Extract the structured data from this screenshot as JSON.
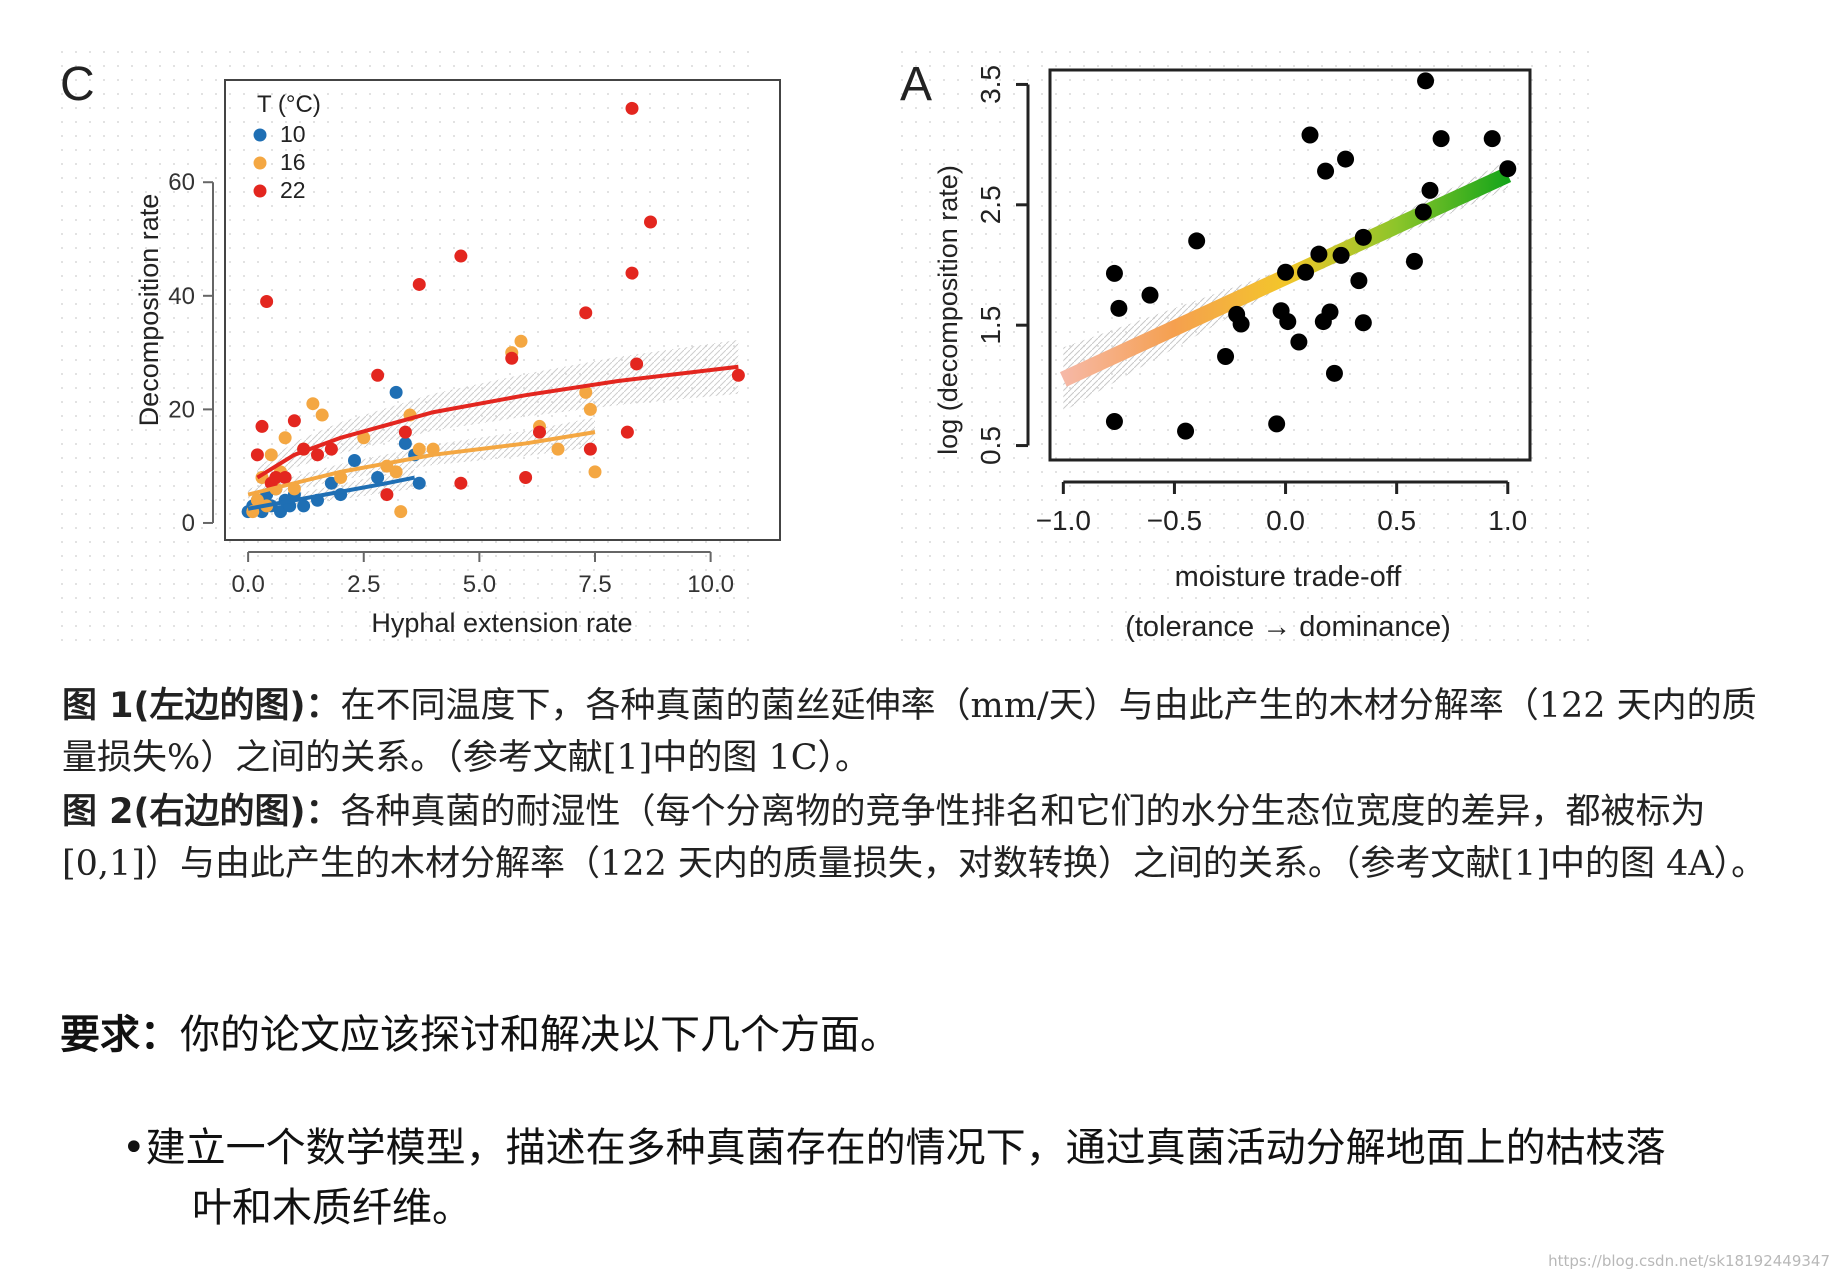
{
  "figure_left": {
    "panel_label": "C",
    "chart_data": {
      "type": "scatter",
      "xlabel": "Hyphal extension rate",
      "ylabel": "Decomposition rate",
      "xlim": [
        -0.5,
        11.5
      ],
      "ylim": [
        -3,
        78
      ],
      "xticks": [
        0.0,
        2.5,
        5.0,
        7.5,
        10.0
      ],
      "xtick_labels": [
        "0.0",
        "2.5",
        "5.0",
        "7.5",
        "10.0"
      ],
      "yticks": [
        0,
        20,
        40,
        60
      ],
      "ytick_labels": [
        "0",
        "20",
        "40",
        "60"
      ],
      "legend_title": "T (°C)",
      "legend_position": "top-left",
      "series": [
        {
          "name": "10",
          "color": "#1f6fb4",
          "x": [
            0.0,
            0.1,
            0.2,
            0.3,
            0.4,
            0.5,
            0.6,
            0.7,
            0.8,
            0.9,
            1.0,
            1.2,
            1.5,
            1.8,
            2.0,
            2.3,
            2.8,
            3.2,
            3.4,
            3.6,
            3.7
          ],
          "y": [
            2,
            3,
            4,
            2,
            5,
            3,
            6,
            2,
            4,
            3,
            5,
            3,
            4,
            7,
            5,
            11,
            8,
            23,
            14,
            12,
            7
          ],
          "fit": {
            "x": [
              0.0,
              1.0,
              2.0,
              3.0,
              3.6
            ],
            "y": [
              2.5,
              4.0,
              5.5,
              7.0,
              8.0
            ]
          }
        },
        {
          "name": "16",
          "color": "#f4a742",
          "x": [
            0.1,
            0.2,
            0.3,
            0.4,
            0.5,
            0.6,
            0.7,
            0.8,
            1.0,
            1.2,
            1.4,
            1.6,
            2.0,
            2.5,
            3.0,
            3.2,
            3.3,
            3.5,
            3.7,
            4.0,
            5.7,
            5.9,
            6.3,
            6.7,
            7.3,
            7.4,
            7.5
          ],
          "y": [
            2,
            4,
            8,
            3,
            12,
            6,
            9,
            15,
            6,
            13,
            21,
            19,
            8,
            15,
            10,
            9,
            2,
            19,
            13,
            13,
            30,
            32,
            17,
            13,
            23,
            20,
            9
          ],
          "fit": {
            "x": [
              0.0,
              2.0,
              4.0,
              6.0,
              7.5
            ],
            "y": [
              5.0,
              9.0,
              12.0,
              14.0,
              16.0
            ]
          }
        },
        {
          "name": "22",
          "color": "#e3261f",
          "x": [
            0.2,
            0.3,
            0.4,
            0.5,
            0.6,
            0.8,
            1.0,
            1.2,
            1.5,
            1.8,
            2.8,
            3.0,
            3.4,
            3.7,
            4.6,
            4.6,
            5.7,
            6.0,
            6.3,
            7.3,
            7.4,
            8.2,
            8.3,
            8.3,
            8.4,
            8.7,
            10.6
          ],
          "y": [
            12,
            17,
            39,
            7,
            8,
            8,
            18,
            13,
            12,
            13,
            26,
            5,
            16,
            42,
            47,
            7,
            29,
            8,
            16,
            37,
            13,
            16,
            44,
            73,
            28,
            53,
            26
          ],
          "fit": {
            "x": [
              0.2,
              1.0,
              2.0,
              4.0,
              6.0,
              8.0,
              10.6
            ],
            "y": [
              8.0,
              12.0,
              15.0,
              19.5,
              22.5,
              25.0,
              27.5
            ]
          }
        }
      ]
    }
  },
  "figure_right": {
    "panel_label": "A",
    "chart_data": {
      "type": "scatter",
      "xlabel": "moisture trade-off",
      "xlabel_line2": "(tolerance → dominance)",
      "ylabel": "log (decomposition rate)",
      "xlim": [
        -1.06,
        1.1
      ],
      "ylim": [
        0.38,
        3.62
      ],
      "xticks": [
        -1.0,
        -0.5,
        0.0,
        0.5,
        1.0
      ],
      "xtick_labels": [
        "−1.0",
        "−0.5",
        "0.0",
        "0.5",
        "1.0"
      ],
      "yticks": [
        0.5,
        1.5,
        2.5,
        3.5
      ],
      "ytick_labels": [
        "0.5",
        "1.5",
        "2.5",
        "3.5"
      ],
      "points": {
        "x": [
          -0.77,
          -0.77,
          -0.75,
          -0.61,
          -0.45,
          -0.4,
          -0.27,
          -0.22,
          -0.2,
          -0.04,
          -0.02,
          0.0,
          0.01,
          0.06,
          0.09,
          0.11,
          0.15,
          0.17,
          0.18,
          0.2,
          0.22,
          0.25,
          0.27,
          0.33,
          0.35,
          0.35,
          0.58,
          0.62,
          0.63,
          0.65,
          0.7,
          0.93,
          1.0
        ],
        "y": [
          0.7,
          1.93,
          1.64,
          1.75,
          0.62,
          2.2,
          1.24,
          1.59,
          1.51,
          0.68,
          1.62,
          1.94,
          1.53,
          1.36,
          1.94,
          3.08,
          2.09,
          1.53,
          2.78,
          1.61,
          1.1,
          2.08,
          2.88,
          1.87,
          2.23,
          1.52,
          2.03,
          2.44,
          3.53,
          2.62,
          3.05,
          3.05,
          2.8
        ]
      },
      "fit": {
        "x": [
          -1.0,
          1.0
        ],
        "y": [
          1.05,
          2.75
        ],
        "gradient_colors": [
          "#f6b8a6",
          "#f5a04f",
          "#f3c62a",
          "#8cc52a",
          "#15a51a"
        ]
      }
    }
  },
  "caption1": {
    "label": "图 1(左边的图)：",
    "text": "在不同温度下，各种真菌的菌丝延伸率（mm/天）与由此产生的木材分解率（122 天内的质量损失%）之间的关系。（参考文献[1]中的图 1C）。"
  },
  "caption2": {
    "label": "图 2(右边的图)：",
    "text": "各种真菌的耐湿性（每个分离物的竞争性排名和它们的水分生态位宽度的差异，都被标为[0,1]）与由此产生的木材分解率（122 天内的质量损失，对数转换）之间的关系。（参考文献[1]中的图 4A）。"
  },
  "requirement": {
    "label": "要求：",
    "text": "你的论文应该探讨和解决以下几个方面。"
  },
  "bullet": {
    "line1": "•建立一个数学模型，描述在多种真菌存在的情况下，通过真菌活动分解地面上的枯枝落",
    "line2": "叶和木质纤维。"
  },
  "watermark": "https://blog.csdn.net/sk18192449347"
}
